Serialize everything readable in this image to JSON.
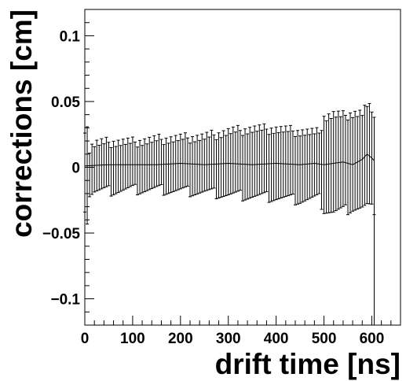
{
  "chart_data": {
    "type": "scatter",
    "xlabel": "drift time [ns]",
    "ylabel": "corrections [cm]",
    "title": "",
    "xlim": [
      0,
      660
    ],
    "ylim": [
      -0.12,
      0.12
    ],
    "x_ticks": [
      0,
      100,
      200,
      300,
      400,
      500,
      600
    ],
    "x_tick_labels": [
      "0",
      "100",
      "200",
      "300",
      "400",
      "500",
      "600"
    ],
    "y_ticks": [
      -0.1,
      -0.05,
      0,
      0.05,
      0.1
    ],
    "y_tick_labels": [
      "−0.1",
      "−0.05",
      "0",
      "0.05",
      "0.1"
    ],
    "grid": false,
    "legend": false,
    "series": [
      {
        "profile_mean": {
          "x": [
            0,
            50,
            100,
            150,
            200,
            250,
            300,
            350,
            400,
            450,
            480,
            500,
            520,
            540,
            560,
            580,
            590,
            600,
            605
          ],
          "y": [
            0.001,
            0.002,
            0.002,
            0.002,
            0.003,
            0.002,
            0.003,
            0.002,
            0.003,
            0.002,
            0.003,
            0.002,
            0.003,
            0.004,
            0.002,
            0.006,
            0.01,
            0.007,
            0.005
          ]
        },
        "error_upper": {
          "x": [
            0,
            5,
            10,
            20,
            50,
            100,
            150,
            200,
            250,
            300,
            350,
            400,
            450,
            490,
            500,
            520,
            540,
            560,
            580,
            590,
            600,
            605
          ],
          "y": [
            0.03,
            0.03,
            0.014,
            0.018,
            0.019,
            0.019,
            0.021,
            0.022,
            0.023,
            0.027,
            0.029,
            0.029,
            0.027,
            0.026,
            0.038,
            0.04,
            0.039,
            0.041,
            0.041,
            0.047,
            0.042,
            0.042
          ]
        },
        "error_lower": {
          "x": [
            0,
            5,
            10,
            20,
            50,
            100,
            150,
            200,
            250,
            300,
            350,
            400,
            450,
            490,
            500,
            520,
            540,
            560,
            580,
            590,
            600,
            605
          ],
          "y": [
            -0.03,
            -0.04,
            -0.02,
            -0.018,
            -0.018,
            -0.017,
            -0.017,
            -0.018,
            -0.019,
            -0.021,
            -0.022,
            -0.023,
            -0.025,
            -0.024,
            -0.032,
            -0.034,
            -0.033,
            -0.031,
            -0.031,
            -0.03,
            -0.032,
            -0.032
          ]
        }
      }
    ],
    "spike": {
      "x": 605,
      "y_top": 0.005,
      "y_bottom": -0.12
    },
    "colors": {
      "line": "#000000",
      "background": "#ffffff"
    }
  }
}
